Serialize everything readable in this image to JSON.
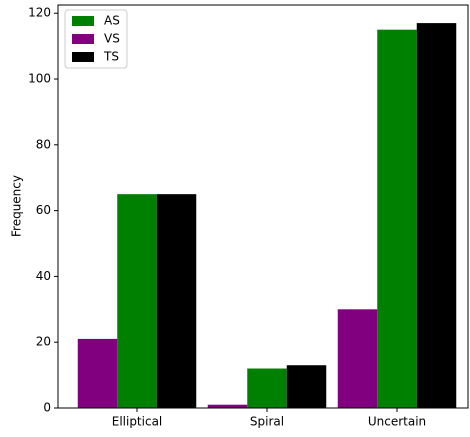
{
  "chart_data": {
    "type": "bar",
    "y_label": "Frequency",
    "categories": [
      "Elliptical",
      "Spiral",
      "Uncertain"
    ],
    "series": [
      {
        "name": "AS",
        "color": "#008000",
        "values": [
          65,
          12,
          115
        ]
      },
      {
        "name": "VS",
        "color": "#800080",
        "values": [
          21,
          1,
          30
        ]
      },
      {
        "name": "TS",
        "color": "#000000",
        "values": [
          65,
          13,
          117
        ]
      }
    ],
    "ylim": [
      0,
      122.5
    ],
    "yticks": [
      0,
      20,
      40,
      60,
      80,
      100,
      120
    ],
    "legend": "upper left"
  }
}
